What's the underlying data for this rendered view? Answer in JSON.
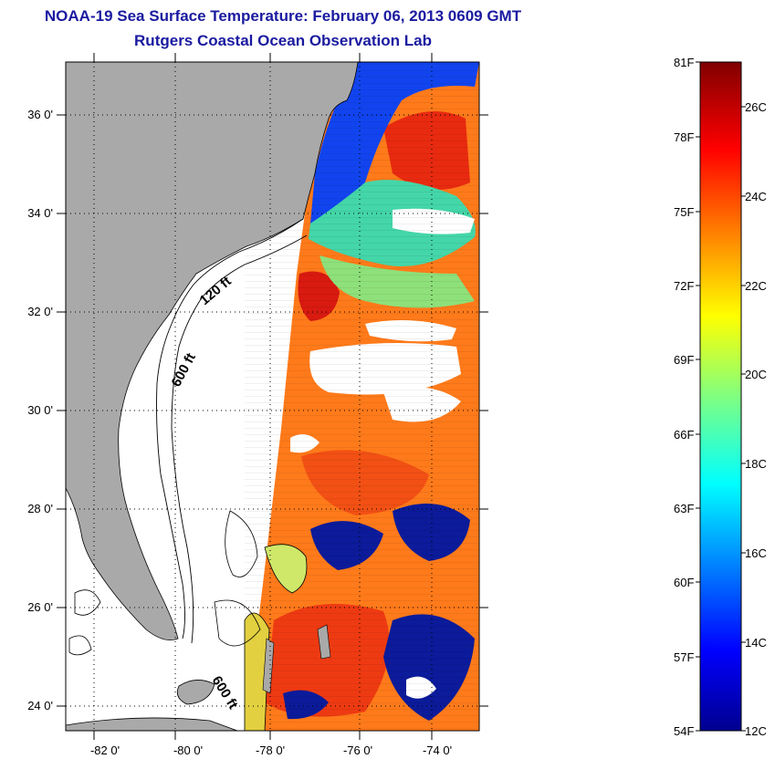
{
  "title": "NOAA-19 Sea Surface Temperature:  February 06, 2013 0609 GMT",
  "subtitle": "Rutgers Coastal Ocean Observation Lab",
  "map": {
    "lat_ticks": [
      "36 0'",
      "34 0'",
      "32 0'",
      "30 0'",
      "28 0'",
      "26 0'",
      "24 0'"
    ],
    "lon_ticks": [
      "-82 0'",
      "-80 0'",
      "-78 0'",
      "-76 0'",
      "-74 0'"
    ],
    "lat_range": [
      23,
      37
    ],
    "lon_range": [
      -83.0,
      -72.7
    ],
    "contours": {
      "c120": "120 ft",
      "c600a": "600 ft",
      "c600b": "600 ft"
    },
    "colors": {
      "land": "#a9a9a9",
      "ocean_no_data": "#ffffff",
      "cloud": "#ffffff"
    }
  },
  "colorbar": {
    "f_labels": [
      "81F",
      "78F",
      "75F",
      "72F",
      "69F",
      "66F",
      "63F",
      "60F",
      "57F",
      "54F"
    ],
    "c_labels": [
      "26C",
      "24C",
      "22C",
      "20C",
      "18C",
      "16C",
      "14C",
      "12C"
    ],
    "range_c": [
      12,
      27
    ],
    "colormap": "jet"
  }
}
